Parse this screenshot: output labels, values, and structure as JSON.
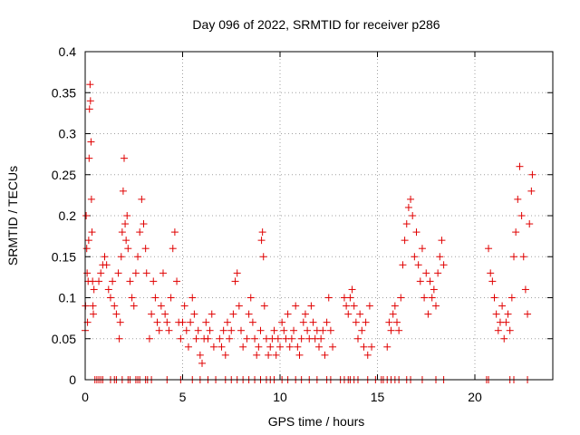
{
  "chart_data": {
    "type": "scatter",
    "title": "Day 096 of 2022, SRMTID for receiver p286",
    "xlabel": "GPS time / hours",
    "ylabel": "SRMTID / TECUs",
    "xlim": [
      0,
      24
    ],
    "ylim": [
      0,
      0.4
    ],
    "grid": true,
    "marker": "+",
    "color": "#e00000",
    "x_ticks": [
      0,
      5,
      10,
      15,
      20
    ],
    "y_ticks": [
      0,
      0.05,
      0.1,
      0.15,
      0.2,
      0.25,
      0.3,
      0.35,
      0.4
    ],
    "x_tick_labels": [
      "0",
      "5",
      "10",
      "15",
      "20"
    ],
    "y_tick_labels": [
      "0",
      "0.05",
      "0.1",
      "0.15",
      "0.2",
      "0.25",
      "0.3",
      "0.35",
      "0.4"
    ],
    "series": [
      {
        "name": "SRMTID",
        "points": [
          [
            0.0,
            0.06
          ],
          [
            0.02,
            0.09
          ],
          [
            0.05,
            0.2
          ],
          [
            0.08,
            0.16
          ],
          [
            0.1,
            0.13
          ],
          [
            0.12,
            0.07
          ],
          [
            0.15,
            0.12
          ],
          [
            0.18,
            0.17
          ],
          [
            0.2,
            0.27
          ],
          [
            0.22,
            0.33
          ],
          [
            0.25,
            0.36
          ],
          [
            0.27,
            0.34
          ],
          [
            0.3,
            0.29
          ],
          [
            0.32,
            0.22
          ],
          [
            0.35,
            0.18
          ],
          [
            0.38,
            0.12
          ],
          [
            0.4,
            0.09
          ],
          [
            0.42,
            0.08
          ],
          [
            0.45,
            0.11
          ],
          [
            0.7,
            0.12
          ],
          [
            0.8,
            0.13
          ],
          [
            0.9,
            0.14
          ],
          [
            1.0,
            0.15
          ],
          [
            1.1,
            0.14
          ],
          [
            1.2,
            0.11
          ],
          [
            1.3,
            0.1
          ],
          [
            1.4,
            0.12
          ],
          [
            1.5,
            0.09
          ],
          [
            1.6,
            0.08
          ],
          [
            1.7,
            0.13
          ],
          [
            1.75,
            0.05
          ],
          [
            1.8,
            0.07
          ],
          [
            1.85,
            0.15
          ],
          [
            1.9,
            0.18
          ],
          [
            1.95,
            0.23
          ],
          [
            2.0,
            0.27
          ],
          [
            2.05,
            0.19
          ],
          [
            2.1,
            0.17
          ],
          [
            2.15,
            0.2
          ],
          [
            2.2,
            0.16
          ],
          [
            2.3,
            0.12
          ],
          [
            2.4,
            0.1
          ],
          [
            2.5,
            0.09
          ],
          [
            2.6,
            0.13
          ],
          [
            2.7,
            0.15
          ],
          [
            2.8,
            0.18
          ],
          [
            2.9,
            0.22
          ],
          [
            3.0,
            0.19
          ],
          [
            3.1,
            0.16
          ],
          [
            3.15,
            0.13
          ],
          [
            3.3,
            0.05
          ],
          [
            3.4,
            0.08
          ],
          [
            3.5,
            0.12
          ],
          [
            3.6,
            0.1
          ],
          [
            3.7,
            0.07
          ],
          [
            3.8,
            0.06
          ],
          [
            3.9,
            0.09
          ],
          [
            4.0,
            0.13
          ],
          [
            4.1,
            0.08
          ],
          [
            4.2,
            0.07
          ],
          [
            4.3,
            0.06
          ],
          [
            4.4,
            0.1
          ],
          [
            4.5,
            0.16
          ],
          [
            4.6,
            0.18
          ],
          [
            4.7,
            0.12
          ],
          [
            4.8,
            0.07
          ],
          [
            4.9,
            0.05
          ],
          [
            5.0,
            0.07
          ],
          [
            5.1,
            0.09
          ],
          [
            5.2,
            0.06
          ],
          [
            5.3,
            0.04
          ],
          [
            5.4,
            0.07
          ],
          [
            5.5,
            0.1
          ],
          [
            5.6,
            0.08
          ],
          [
            5.7,
            0.05
          ],
          [
            5.8,
            0.06
          ],
          [
            5.9,
            0.03
          ],
          [
            6.0,
            0.02
          ],
          [
            6.1,
            0.05
          ],
          [
            6.2,
            0.07
          ],
          [
            6.3,
            0.05
          ],
          [
            6.4,
            0.06
          ],
          [
            6.5,
            0.08
          ],
          [
            6.6,
            0.04
          ],
          [
            6.9,
            0.05
          ],
          [
            7.0,
            0.04
          ],
          [
            7.1,
            0.06
          ],
          [
            7.2,
            0.03
          ],
          [
            7.3,
            0.07
          ],
          [
            7.4,
            0.05
          ],
          [
            7.5,
            0.06
          ],
          [
            7.6,
            0.08
          ],
          [
            7.7,
            0.12
          ],
          [
            7.8,
            0.13
          ],
          [
            7.9,
            0.09
          ],
          [
            8.0,
            0.06
          ],
          [
            8.1,
            0.04
          ],
          [
            8.3,
            0.05
          ],
          [
            8.4,
            0.08
          ],
          [
            8.5,
            0.1
          ],
          [
            8.6,
            0.07
          ],
          [
            8.7,
            0.05
          ],
          [
            8.8,
            0.03
          ],
          [
            8.9,
            0.04
          ],
          [
            9.0,
            0.06
          ],
          [
            9.05,
            0.17
          ],
          [
            9.1,
            0.18
          ],
          [
            9.15,
            0.15
          ],
          [
            9.2,
            0.09
          ],
          [
            9.3,
            0.05
          ],
          [
            9.4,
            0.03
          ],
          [
            9.5,
            0.04
          ],
          [
            9.6,
            0.05
          ],
          [
            9.7,
            0.06
          ],
          [
            9.8,
            0.03
          ],
          [
            9.9,
            0.05
          ],
          [
            10.0,
            0.04
          ],
          [
            10.1,
            0.07
          ],
          [
            10.2,
            0.06
          ],
          [
            10.3,
            0.05
          ],
          [
            10.4,
            0.08
          ],
          [
            10.5,
            0.04
          ],
          [
            10.6,
            0.05
          ],
          [
            10.7,
            0.06
          ],
          [
            10.8,
            0.09
          ],
          [
            10.9,
            0.04
          ],
          [
            11.0,
            0.03
          ],
          [
            11.1,
            0.05
          ],
          [
            11.2,
            0.07
          ],
          [
            11.3,
            0.08
          ],
          [
            11.4,
            0.06
          ],
          [
            11.5,
            0.05
          ],
          [
            11.6,
            0.09
          ],
          [
            11.7,
            0.07
          ],
          [
            11.8,
            0.05
          ],
          [
            11.9,
            0.06
          ],
          [
            12.0,
            0.04
          ],
          [
            12.1,
            0.05
          ],
          [
            12.2,
            0.06
          ],
          [
            12.3,
            0.03
          ],
          [
            12.4,
            0.07
          ],
          [
            12.5,
            0.1
          ],
          [
            12.6,
            0.06
          ],
          [
            12.7,
            0.04
          ],
          [
            13.3,
            0.1
          ],
          [
            13.4,
            0.09
          ],
          [
            13.5,
            0.08
          ],
          [
            13.6,
            0.1
          ],
          [
            13.7,
            0.11
          ],
          [
            13.8,
            0.09
          ],
          [
            13.9,
            0.07
          ],
          [
            14.0,
            0.05
          ],
          [
            14.1,
            0.08
          ],
          [
            14.2,
            0.06
          ],
          [
            14.3,
            0.04
          ],
          [
            14.4,
            0.07
          ],
          [
            14.5,
            0.03
          ],
          [
            14.6,
            0.09
          ],
          [
            14.7,
            0.04
          ],
          [
            15.5,
            0.04
          ],
          [
            15.6,
            0.07
          ],
          [
            15.7,
            0.06
          ],
          [
            15.8,
            0.08
          ],
          [
            15.9,
            0.09
          ],
          [
            16.0,
            0.07
          ],
          [
            16.1,
            0.06
          ],
          [
            16.2,
            0.1
          ],
          [
            16.3,
            0.14
          ],
          [
            16.4,
            0.17
          ],
          [
            16.5,
            0.19
          ],
          [
            16.6,
            0.21
          ],
          [
            16.7,
            0.22
          ],
          [
            16.8,
            0.2
          ],
          [
            16.9,
            0.15
          ],
          [
            17.0,
            0.18
          ],
          [
            17.1,
            0.14
          ],
          [
            17.2,
            0.12
          ],
          [
            17.3,
            0.16
          ],
          [
            17.4,
            0.1
          ],
          [
            17.5,
            0.13
          ],
          [
            17.6,
            0.08
          ],
          [
            17.7,
            0.12
          ],
          [
            17.8,
            0.1
          ],
          [
            17.9,
            0.11
          ],
          [
            18.0,
            0.09
          ],
          [
            18.1,
            0.13
          ],
          [
            18.2,
            0.15
          ],
          [
            18.3,
            0.17
          ],
          [
            18.4,
            0.14
          ],
          [
            20.7,
            0.16
          ],
          [
            20.8,
            0.13
          ],
          [
            20.9,
            0.12
          ],
          [
            21.0,
            0.1
          ],
          [
            21.1,
            0.08
          ],
          [
            21.2,
            0.06
          ],
          [
            21.3,
            0.07
          ],
          [
            21.4,
            0.09
          ],
          [
            21.5,
            0.05
          ],
          [
            21.6,
            0.07
          ],
          [
            21.7,
            0.08
          ],
          [
            21.8,
            0.06
          ],
          [
            21.9,
            0.1
          ],
          [
            22.0,
            0.15
          ],
          [
            22.1,
            0.18
          ],
          [
            22.2,
            0.22
          ],
          [
            22.3,
            0.26
          ],
          [
            22.4,
            0.2
          ],
          [
            22.5,
            0.15
          ],
          [
            22.6,
            0.11
          ],
          [
            22.7,
            0.08
          ],
          [
            22.8,
            0.19
          ],
          [
            22.9,
            0.23
          ],
          [
            22.95,
            0.25
          ]
        ]
      }
    ],
    "zero_markers": [
      0.5,
      0.6,
      0.7,
      0.8,
      0.9,
      1.3,
      1.5,
      1.6,
      1.9,
      2.2,
      2.3,
      2.6,
      2.7,
      2.8,
      3.1,
      3.2,
      3.4,
      4.2,
      4.9,
      5.5,
      5.9,
      6.3,
      6.7,
      7.2,
      7.5,
      7.8,
      8.1,
      8.4,
      8.7,
      9.0,
      9.3,
      9.5,
      9.7,
      10.1,
      10.4,
      10.8,
      11.1,
      11.5,
      11.9,
      12.4,
      12.6,
      13.1,
      13.3,
      13.5,
      13.6,
      13.8,
      14.0,
      14.5,
      14.9,
      15.2,
      15.3,
      15.5,
      15.7,
      15.9,
      16.1,
      16.5,
      16.7,
      17.3,
      18.0,
      18.4,
      20.6,
      20.7,
      21.8,
      22.0,
      22.7
    ]
  }
}
